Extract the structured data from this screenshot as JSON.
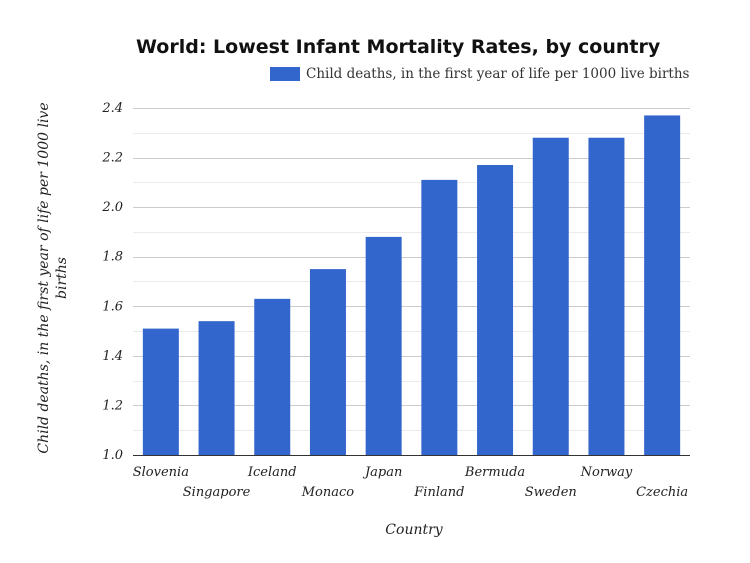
{
  "chart_data": {
    "type": "bar",
    "title": "World: Lowest Infant Mortality Rates, by country",
    "xlabel": "Country",
    "ylabel": "Child deaths, in the first year of life per 1000 live births",
    "ylim": [
      1.0,
      2.4
    ],
    "yticks": [
      "1.0",
      "1.2",
      "1.4",
      "1.6",
      "1.8",
      "2.0",
      "2.2",
      "2.4"
    ],
    "grid": true,
    "legend_position": "top-right",
    "color": "#3366cc",
    "categories": [
      "Slovenia",
      "Singapore",
      "Iceland",
      "Monaco",
      "Japan",
      "Finland",
      "Bermuda",
      "Sweden",
      "Norway",
      "Czechia"
    ],
    "series": [
      {
        "name": "Child deaths, in the first year of life per 1000 live births",
        "values": [
          1.51,
          1.54,
          1.63,
          1.75,
          1.88,
          2.11,
          2.17,
          2.28,
          2.28,
          2.37
        ]
      }
    ]
  }
}
